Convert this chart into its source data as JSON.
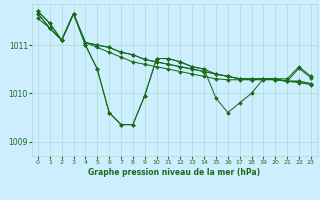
{
  "title": "Graphe pression niveau de la mer (hPa)",
  "bg_color": "#cceeff",
  "grid_color": "#aaddcc",
  "line_color": "#1a6b1a",
  "ylim": [
    1008.7,
    1011.85
  ],
  "yticks": [
    1009,
    1010,
    1011
  ],
  "xlim": [
    -0.5,
    23.5
  ],
  "xticks": [
    0,
    1,
    2,
    3,
    4,
    5,
    6,
    7,
    8,
    9,
    10,
    11,
    12,
    13,
    14,
    15,
    16,
    17,
    18,
    19,
    20,
    21,
    22,
    23
  ],
  "series": [
    [
      1011.55,
      1011.35,
      1011.1,
      1011.65,
      1011.05,
      1011.0,
      1010.95,
      1010.85,
      1010.8,
      1010.7,
      1010.65,
      1010.6,
      1010.55,
      1010.5,
      1010.45,
      1010.4,
      1010.35,
      1010.3,
      1010.3,
      1010.3,
      1010.3,
      1010.25,
      1010.25,
      1010.2
    ],
    [
      1011.7,
      1011.45,
      1011.1,
      1011.65,
      1011.05,
      1010.95,
      1010.85,
      1010.75,
      1010.65,
      1010.6,
      1010.55,
      1010.5,
      1010.45,
      1010.4,
      1010.35,
      1010.3,
      1010.28,
      1010.28,
      1010.28,
      1010.28,
      1010.28,
      1010.25,
      1010.22,
      1010.18
    ],
    [
      1011.7,
      1011.45,
      1011.1,
      1011.65,
      1011.05,
      1011.0,
      1010.95,
      1010.85,
      1010.8,
      1010.7,
      1010.65,
      1010.6,
      1010.55,
      1010.5,
      1010.45,
      1010.4,
      1010.35,
      1010.3,
      1010.3,
      1010.3,
      1010.3,
      1010.25,
      1010.25,
      1010.2
    ],
    [
      1011.65,
      1011.35,
      1011.1,
      1011.65,
      1011.0,
      1010.5,
      1009.6,
      1009.35,
      1009.35,
      1009.95,
      1010.72,
      1010.72,
      1010.65,
      1010.55,
      1010.5,
      1009.9,
      1009.6,
      1009.8,
      1010.0,
      1010.3,
      1010.3,
      1010.3,
      1010.55,
      1010.35
    ],
    [
      1011.65,
      1011.35,
      1011.1,
      1011.65,
      1011.0,
      1010.5,
      1009.6,
      1009.35,
      1009.35,
      1009.95,
      1010.72,
      1010.72,
      1010.65,
      1010.55,
      1010.5,
      1010.4,
      1010.35,
      1010.3,
      1010.28,
      1010.3,
      1010.28,
      1010.25,
      1010.52,
      1010.32
    ]
  ]
}
